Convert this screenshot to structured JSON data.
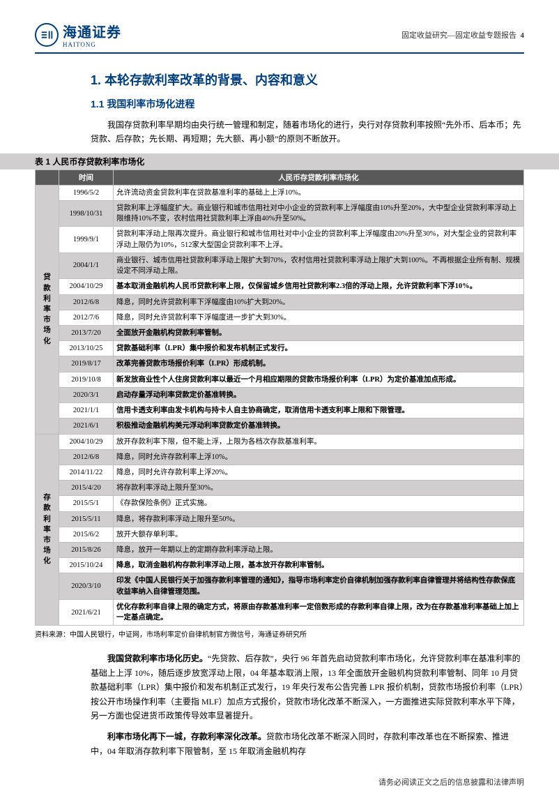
{
  "header": {
    "logo_cn": "海通证券",
    "logo_en": "HAITONG",
    "right_text": "固定收益研究—固定收益专题报告",
    "page_no": "4"
  },
  "headings": {
    "h1": "1. 本轮存款利率改革的背景、内容和意义",
    "h2": "1.1 我国利率市场化进程"
  },
  "intro_para": "我国存贷款利率早期均由央行统一管理和制定，随着市场化的进行，央行对存贷款利率按照“先外币、后本币；先贷款、后存款；先长期、再短期；先大额、再小额”的原则不断放开。",
  "table": {
    "title": "表 1 人民币存贷款利率市场化",
    "head_time": "时间",
    "head_desc": "人民币存贷款利率市场化",
    "cat_loan": "贷款利率市场化",
    "cat_deposit": "存款利率市场化",
    "loan_rows": [
      {
        "date": "1996/5/2",
        "desc": "允许流动资金贷款利率在贷款基准利率的基础上上浮10%。",
        "shade": false,
        "bold": false
      },
      {
        "date": "1998/10/31",
        "desc": "贷款利率上浮幅度扩大。商业银行和城市信用社对中小企业的贷款利率上浮幅度由10%升至20%，大中型企业贷款利率浮动上限维持10%不变，农村信用社贷款利率上浮由40%升至50%。",
        "shade": true,
        "bold": false
      },
      {
        "date": "1999/9/1",
        "desc": "贷款利率浮动上限再次提升。商业银行和城市信用社对中小企业的贷款利率上浮幅度由20%升至30%，对大型企业的贷款利率浮动上限仍为10%，512家大型国企贷款利率不上浮。",
        "shade": false,
        "bold": false
      },
      {
        "date": "2004/1/1",
        "desc": "商业银行、城市信用社贷款利率浮动上限扩大到70%，农村信用社贷款利率浮动上限扩大到100%。不再根据企业所有制、规模设定不同浮动上限。",
        "shade": true,
        "bold": false
      },
      {
        "date": "2004/10/29",
        "desc": "基本取消金融机构人民币贷款利率上限，仅保留城乡信用社贷款利率2.3倍的浮动上限，允许贷款利率下浮10%。",
        "shade": false,
        "bold": true
      },
      {
        "date": "2012/6/8",
        "desc": "降息，同时允许贷款利率下浮幅度由10%扩大到20%。",
        "shade": true,
        "bold": false
      },
      {
        "date": "2012/7/6",
        "desc": "降息，同时允许贷款利率下浮幅度进一步扩大到30%。",
        "shade": false,
        "bold": false
      },
      {
        "date": "2013/7/20",
        "desc": "全面放开金融机构贷款利率管制。",
        "shade": true,
        "bold": true
      },
      {
        "date": "2013/10/25",
        "desc": "贷款基础利率（LPR）集中报价和发布机制正式发行。",
        "shade": false,
        "bold": true
      },
      {
        "date": "2019/8/17",
        "desc": "改革完善贷款市场报价利率（LPR）形成机制。",
        "shade": true,
        "bold": true
      },
      {
        "date": "2019/10/8",
        "desc": "新发放商业性个人住房贷款利率以最近一个月相应期限的贷款市场报价利率（LPR）为定价基准加点形成。",
        "shade": false,
        "bold": true
      },
      {
        "date": "2020/3/1",
        "desc": "启动存量浮动利率贷款定价基准转换。",
        "shade": true,
        "bold": true
      },
      {
        "date": "2021/1/1",
        "desc": "信用卡透支利率由发卡机构与持卡人自主协商确定，取消信用卡透支利率上限和下限管理。",
        "shade": false,
        "bold": true
      },
      {
        "date": "2021/6/1",
        "desc": "积极推动金融机构美元浮动利率贷款定价基准转换。",
        "shade": true,
        "bold": true
      }
    ],
    "deposit_rows": [
      {
        "date": "2004/10/29",
        "desc": "放开存款利率下限，但不能上浮，上限为各档次存款基准利率。",
        "shade": false,
        "bold": false
      },
      {
        "date": "2012/6/8",
        "desc": "降息，同时允许存款利率上浮10%。",
        "shade": true,
        "bold": false
      },
      {
        "date": "2014/11/22",
        "desc": "降息，同时允许存款利率上浮20%。",
        "shade": false,
        "bold": false
      },
      {
        "date": "2015/4/20",
        "desc": "将存款利率浮动上限升至30%。",
        "shade": true,
        "bold": false
      },
      {
        "date": "2015/5/1",
        "desc": "《存款保险条例》正式实施。",
        "shade": false,
        "bold": false
      },
      {
        "date": "2015/5/11",
        "desc": "降息，将存款利率浮动上限升至50%。",
        "shade": true,
        "bold": false
      },
      {
        "date": "2015/6/2",
        "desc": "放开大额存单利率。",
        "shade": false,
        "bold": false
      },
      {
        "date": "2015/8/26",
        "desc": "降息，放开一年期以上的定期存款利率浮动上限。",
        "shade": true,
        "bold": false
      },
      {
        "date": "2015/10/24",
        "desc": "降息，取消金融机构存款利率浮动上限，基本放开存款利率管制。",
        "shade": false,
        "bold": true
      },
      {
        "date": "2020/3/10",
        "desc": "印发《中国人民银行关于加强存款利率管理的通知》，指导市场利率定价自律机制加强存款利率自律管理并将结构性存款保底收益率纳入自律管理范围。",
        "shade": true,
        "bold": true
      },
      {
        "date": "2021/6/21",
        "desc": "优化存款利率自律上限的确定方式，将原由存款基准利率一定倍数形成的存款利率自律上限，改为在存款基准利率基础上加上一定基点确定。",
        "shade": false,
        "bold": true
      }
    ]
  },
  "source": "资料来源：中国人民银行，中证网，市场利率定价自律机制官方微信号，海通证券研究所",
  "para2_lead": "我国贷款利率市场化历史。",
  "para2_body": "“先贷款、后存款”，央行 96 年首先启动贷款利率市场化，允许贷款利率在基准利率的基础上上浮 10%，随后逐步放宽浮动上限，04 年基本取消上限，13 年全面放开金融机构贷款利率管制、同年 10 月贷款基础利率（LPR）集中报价和发布机制正式发行，19 年央行发布公告完善 LPR 报价机制，贷款市场报价利率（LPR）按公开市场操作利率（主要指 MLF）加点方式报价，贷款市场化改革不断深入，一方面推进实际贷款利率水平下降，另一方面也促进货币政策传导效率显著提升。",
  "para3_lead": "利率市场化再下一城，存款利率深化改革。",
  "para3_body": "贷款市场化改革不断深入同时，存款利率改革也在不断探索、推进中，04 年取消存款利率下限管制，至 15 年取消金融机构存",
  "footer": "请务必阅读正文之后的信息披露和法律声明"
}
